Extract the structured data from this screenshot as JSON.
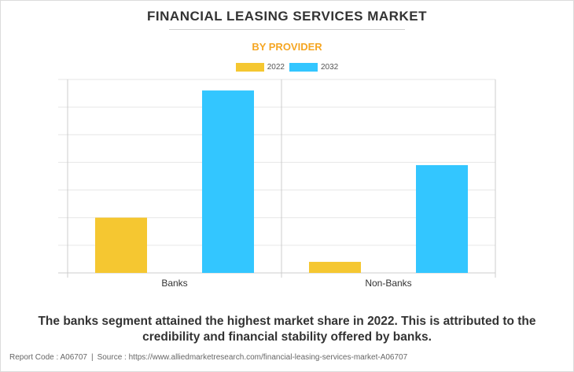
{
  "header": {
    "title": "FINANCIAL LEASING SERVICES MARKET",
    "subtitle": "BY PROVIDER"
  },
  "colors": {
    "subtitle": "#f5a623",
    "series_2022": "#f5c731",
    "series_2032": "#33c6ff",
    "grid": "#e6e6e6",
    "axis": "#cccccc"
  },
  "chart_data": {
    "type": "bar",
    "categories": [
      "Banks",
      "Non-Banks"
    ],
    "series": [
      {
        "name": "2022",
        "values": [
          2.0,
          0.4
        ]
      },
      {
        "name": "2032",
        "values": [
          6.6,
          3.9
        ]
      }
    ],
    "ylim": [
      0,
      7
    ],
    "grid": true,
    "legend": "top-center",
    "xlabel": "",
    "ylabel": ""
  },
  "caption": "The banks segment attained the highest market share in 2022. This is attributed to the credibility and financial stability offered by banks.",
  "footer": {
    "report_code": "Report Code : A06707",
    "separator": "|",
    "source": "Source : https://www.alliedmarketresearch.com/financial-leasing-services-market-A06707"
  }
}
